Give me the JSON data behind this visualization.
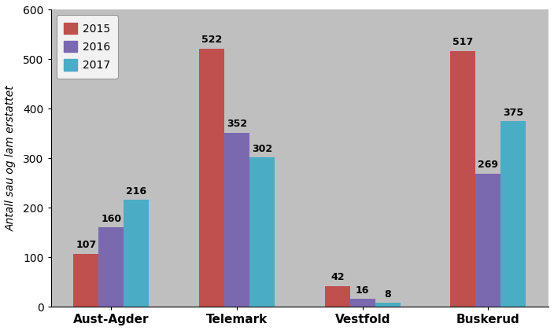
{
  "categories": [
    "Aust-Agder",
    "Telemark",
    "Vestfold",
    "Buskerud"
  ],
  "series": {
    "2015": [
      107,
      522,
      42,
      517
    ],
    "2016": [
      160,
      352,
      16,
      269
    ],
    "2017": [
      216,
      302,
      8,
      375
    ]
  },
  "colors": {
    "2015": "#C0504D",
    "2016": "#7B69B0",
    "2017": "#4BACC6"
  },
  "ylabel": "Antall sau og lam erstattet",
  "ylim": [
    0,
    600
  ],
  "yticks": [
    0,
    100,
    200,
    300,
    400,
    500,
    600
  ],
  "fig_bg_color": "#FFFFFF",
  "plot_bg_color": "#BFBFBF",
  "legend_labels": [
    "2015",
    "2016",
    "2017"
  ],
  "bar_width": 0.2,
  "label_fontsize": 9,
  "axis_fontsize": 10,
  "tick_fontsize": 10,
  "xlabel_fontsize": 11,
  "ylabel_fontsize": 10
}
